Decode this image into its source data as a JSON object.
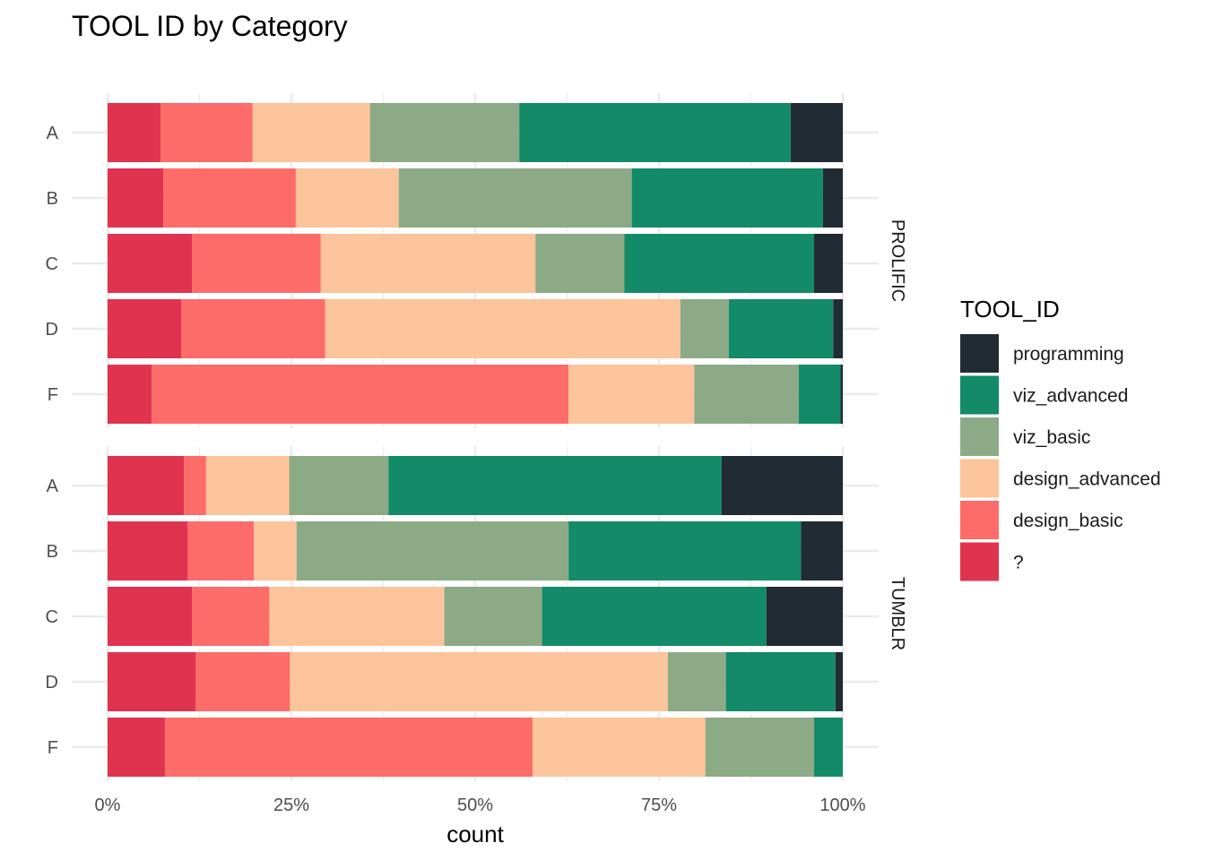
{
  "chart_data": {
    "type": "bar",
    "orientation": "horizontal",
    "stacked": true,
    "normalized": true,
    "title": "TOOL ID by Category",
    "xlabel": "count",
    "ylabel": "",
    "xlim": [
      0,
      1
    ],
    "x_ticks": [
      0,
      0.25,
      0.5,
      0.75,
      1
    ],
    "x_tick_labels": [
      "0%",
      "25%",
      "50%",
      "75%",
      "100%"
    ],
    "grid": true,
    "legend": {
      "title": "TOOL_ID",
      "position": "right",
      "entries": [
        {
          "key": "programming",
          "label": "programming",
          "color": "#212b33"
        },
        {
          "key": "viz_advanced",
          "label": "viz_advanced",
          "color": "#138a68"
        },
        {
          "key": "viz_basic",
          "label": "viz_basic",
          "color": "#8caa86"
        },
        {
          "key": "design_advanced",
          "label": "design_advanced",
          "color": "#fbc49a"
        },
        {
          "key": "design_basic",
          "label": "design_basic",
          "color": "#fd6c69"
        },
        {
          "key": "unknown",
          "label": "?",
          "color": "#e0334f"
        }
      ]
    },
    "stack_order": [
      "unknown",
      "design_basic",
      "design_advanced",
      "viz_basic",
      "viz_advanced",
      "programming"
    ],
    "categories": [
      "A",
      "B",
      "C",
      "D",
      "F"
    ],
    "panels": [
      {
        "label": "PROLIFIC",
        "bars": [
          {
            "category": "A",
            "values": {
              "unknown": 0.072,
              "design_basic": 0.125,
              "design_advanced": 0.16,
              "viz_basic": 0.203,
              "viz_advanced": 0.369,
              "programming": 0.071
            }
          },
          {
            "category": "B",
            "values": {
              "unknown": 0.076,
              "design_basic": 0.18,
              "design_advanced": 0.14,
              "viz_basic": 0.317,
              "viz_advanced": 0.26,
              "programming": 0.027
            }
          },
          {
            "category": "C",
            "values": {
              "unknown": 0.115,
              "design_basic": 0.175,
              "design_advanced": 0.292,
              "viz_basic": 0.121,
              "viz_advanced": 0.258,
              "programming": 0.039
            }
          },
          {
            "category": "D",
            "values": {
              "unknown": 0.1,
              "design_basic": 0.196,
              "design_advanced": 0.483,
              "viz_basic": 0.066,
              "viz_advanced": 0.142,
              "programming": 0.013
            }
          },
          {
            "category": "F",
            "values": {
              "unknown": 0.06,
              "design_basic": 0.567,
              "design_advanced": 0.171,
              "viz_basic": 0.142,
              "viz_advanced": 0.057,
              "programming": 0.003
            }
          }
        ]
      },
      {
        "label": "TUMBLR",
        "bars": [
          {
            "category": "A",
            "values": {
              "unknown": 0.104,
              "design_basic": 0.03,
              "design_advanced": 0.113,
              "viz_basic": 0.135,
              "viz_advanced": 0.453,
              "programming": 0.165
            }
          },
          {
            "category": "B",
            "values": {
              "unknown": 0.109,
              "design_basic": 0.09,
              "design_advanced": 0.058,
              "viz_basic": 0.37,
              "viz_advanced": 0.316,
              "programming": 0.057
            }
          },
          {
            "category": "C",
            "values": {
              "unknown": 0.115,
              "design_basic": 0.105,
              "design_advanced": 0.238,
              "viz_basic": 0.133,
              "viz_advanced": 0.305,
              "programming": 0.104
            }
          },
          {
            "category": "D",
            "values": {
              "unknown": 0.12,
              "design_basic": 0.128,
              "design_advanced": 0.514,
              "viz_basic": 0.079,
              "viz_advanced": 0.149,
              "programming": 0.01
            }
          },
          {
            "category": "F",
            "values": {
              "unknown": 0.078,
              "design_basic": 0.5,
              "design_advanced": 0.235,
              "viz_basic": 0.148,
              "viz_advanced": 0.039,
              "programming": 0
            }
          }
        ]
      }
    ]
  }
}
